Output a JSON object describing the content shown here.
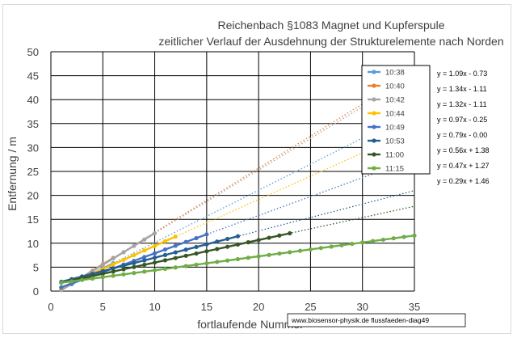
{
  "chart_data": {
    "type": "scatter",
    "title": [
      "Reichenbach §1083 Magnet und Kupferspule",
      "zeitlicher Verlauf der Ausdehnung der Strukturelemente nach Norden"
    ],
    "xlabel": "fortlaufende Nummer",
    "ylabel": "Entfernung / m",
    "xlim": [
      0,
      35
    ],
    "ylim": [
      0,
      50
    ],
    "xticks": [
      0,
      5,
      10,
      15,
      20,
      25,
      30,
      35
    ],
    "yticks": [
      0,
      5,
      10,
      15,
      20,
      25,
      30,
      35,
      40,
      45,
      50
    ],
    "grid": true,
    "legend_position": "top-right",
    "credit": "www.biosensor-physik.de  flussfaeden-diag49",
    "series": [
      {
        "name": "10:38",
        "color": "#5b9bd5",
        "slope": 1.09,
        "intercept": -0.73,
        "equation": "y = 1.09x - 0.73",
        "n": 6
      },
      {
        "name": "10:40",
        "color": "#ed7d31",
        "slope": 1.34,
        "intercept": -1.11,
        "equation": "y = 1.34x - 1.11",
        "n": 6
      },
      {
        "name": "10:42",
        "color": "#a5a5a5",
        "slope": 1.32,
        "intercept": -1.11,
        "equation": "y = 1.32x - 1.11",
        "n": 10
      },
      {
        "name": "10:44",
        "color": "#ffc000",
        "slope": 0.97,
        "intercept": -0.25,
        "equation": "y = 0.97x - 0.25",
        "n": 12
      },
      {
        "name": "10:49",
        "color": "#4472c4",
        "slope": 0.79,
        "intercept": 0.0,
        "equation": "y = 0.79x - 0.00",
        "n": 15
      },
      {
        "name": "10:53",
        "color": "#255e91",
        "slope": 0.56,
        "intercept": 1.38,
        "equation": "y = 0.56x + 1.38",
        "n": 18
      },
      {
        "name": "11:00",
        "color": "#375623",
        "slope": 0.47,
        "intercept": 1.27,
        "equation": "y = 0.47x + 1.27",
        "n": 23
      },
      {
        "name": "11:15",
        "color": "#70ad47",
        "slope": 0.29,
        "intercept": 1.46,
        "equation": "y = 0.29x + 1.46",
        "n": 35
      }
    ]
  }
}
